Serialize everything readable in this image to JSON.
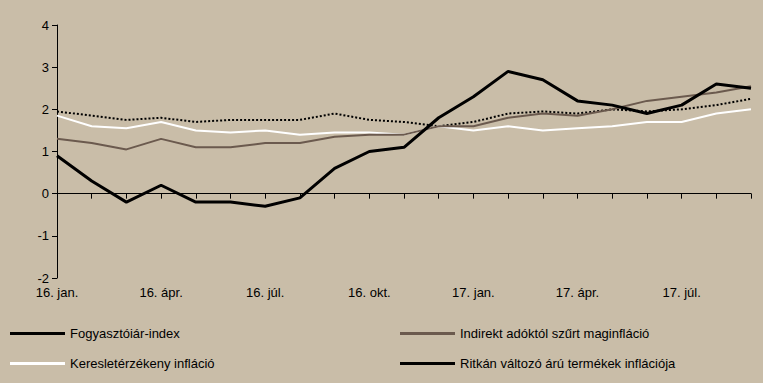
{
  "chart_data": {
    "type": "line",
    "categories": [
      "16. jan.",
      null,
      null,
      "16. ápr.",
      null,
      null,
      "16. júl.",
      null,
      null,
      "16. okt.",
      null,
      null,
      "17. jan.",
      null,
      null,
      "17. ápr.",
      null,
      null,
      "17. júl.",
      null,
      null
    ],
    "series": [
      {
        "name": "Fogyasztóiár-index",
        "color": "#000000",
        "line_style": "solid",
        "values": [
          0.9,
          0.3,
          -0.2,
          0.2,
          -0.2,
          -0.2,
          -0.3,
          -0.1,
          0.6,
          1.0,
          1.1,
          1.8,
          2.3,
          2.9,
          2.7,
          2.2,
          2.1,
          1.9,
          2.1,
          2.6,
          2.5
        ]
      },
      {
        "name": "Indirekt adóktól szűrt maginfláció",
        "color": "#6b5a4e",
        "line_style": "solid",
        "values": [
          1.3,
          1.2,
          1.05,
          1.3,
          1.1,
          1.1,
          1.2,
          1.2,
          1.35,
          1.4,
          1.4,
          1.6,
          1.6,
          1.8,
          1.9,
          1.85,
          2.0,
          2.2,
          2.3,
          2.4,
          2.55
        ]
      },
      {
        "name": "Keresletérzékeny infláció",
        "color": "#ffffff",
        "line_style": "solid",
        "values": [
          1.85,
          1.6,
          1.55,
          1.7,
          1.5,
          1.45,
          1.5,
          1.4,
          1.45,
          1.45,
          1.4,
          1.6,
          1.5,
          1.6,
          1.5,
          1.55,
          1.6,
          1.7,
          1.7,
          1.9,
          2.0
        ]
      },
      {
        "name": "Ritkán változó árú termékek inflációja",
        "color": "#000000",
        "line_style": "dotted",
        "values": [
          1.95,
          1.85,
          1.75,
          1.8,
          1.7,
          1.75,
          1.75,
          1.75,
          1.9,
          1.75,
          1.7,
          1.6,
          1.7,
          1.9,
          1.95,
          1.9,
          2.0,
          1.95,
          2.0,
          2.1,
          2.25
        ]
      }
    ],
    "ylim": [
      -2,
      4
    ],
    "yticks": [
      -2,
      -1,
      0,
      1,
      2,
      3,
      4
    ],
    "grid": false,
    "legend": "bottom"
  }
}
